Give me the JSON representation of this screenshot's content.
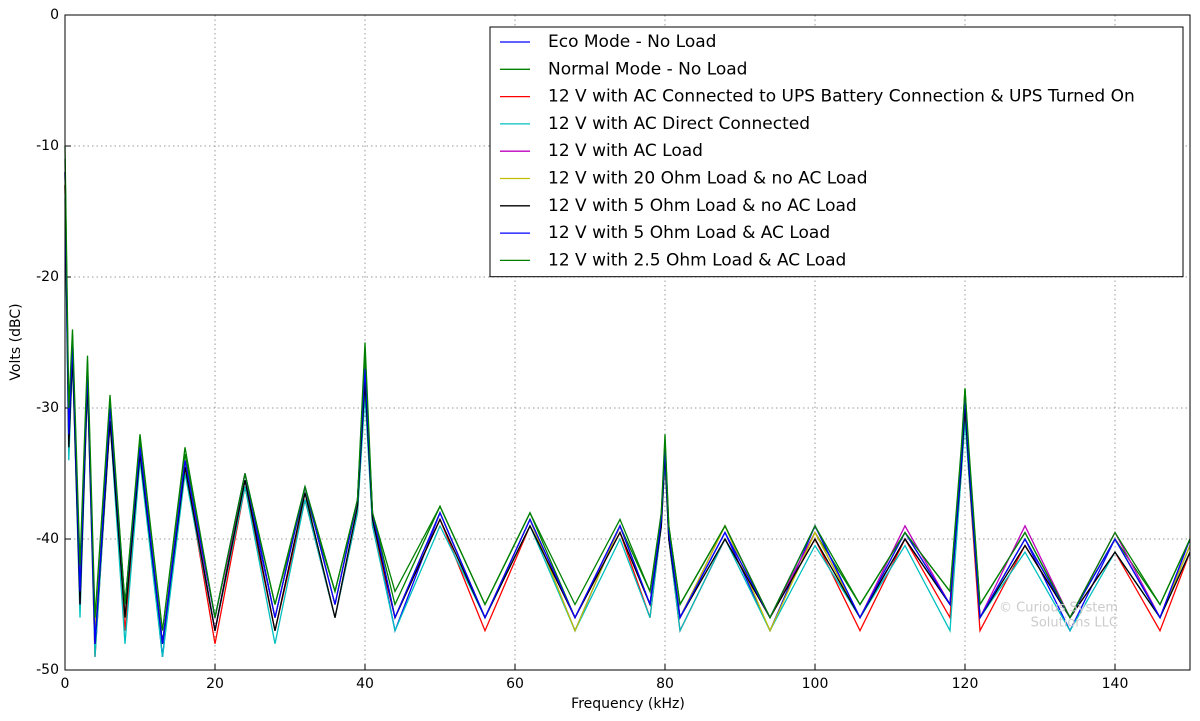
{
  "chart_data": {
    "type": "line",
    "x_label": "Frequency (kHz)",
    "y_label": "Volts (dBC)",
    "annotations": [
      "© Curious System",
      "Solutions LLC"
    ],
    "xlim": [
      0,
      150
    ],
    "xticks": [
      0,
      20,
      40,
      60,
      80,
      100,
      120,
      140
    ],
    "ylim": [
      -50,
      0
    ],
    "yticks": [
      -50,
      -40,
      -30,
      -20,
      -10,
      0
    ],
    "grid": true,
    "legend": "upper right",
    "x": [
      0,
      0.5,
      1,
      2,
      3,
      4,
      6,
      8,
      10,
      13,
      16,
      20,
      24,
      28,
      32,
      36,
      39,
      40,
      41,
      44,
      50,
      56,
      62,
      68,
      74,
      78,
      79.5,
      80,
      80.5,
      82,
      88,
      94,
      100,
      106,
      112,
      118,
      119.5,
      120,
      120.5,
      122,
      128,
      134,
      140,
      146,
      150
    ],
    "series": [
      {
        "name": "Eco Mode - No Load",
        "color": "#0000ff",
        "values": [
          -12,
          -32,
          -25,
          -44,
          -27,
          -48,
          -30,
          -46,
          -33,
          -49,
          -34,
          -47,
          -35.5,
          -46,
          -36,
          -45,
          -37,
          -27,
          -38.5,
          -47,
          -38,
          -46,
          -38.5,
          -47,
          -39,
          -45,
          -38,
          -33,
          -40,
          -46,
          -39.5,
          -47,
          -39,
          -46,
          -40,
          -45,
          -34,
          -29,
          -34,
          -46,
          -40,
          -47,
          -40,
          -46,
          -40.5
        ]
      },
      {
        "name": "Normal Mode - No Load",
        "color": "#008000",
        "values": [
          -11,
          -31,
          -24.5,
          -43,
          -26.5,
          -47,
          -29.5,
          -45,
          -32.5,
          -48,
          -33.5,
          -46,
          -35,
          -45,
          -36.5,
          -44,
          -37,
          -26,
          -38,
          -45,
          -37.5,
          -45,
          -38,
          -46,
          -39,
          -44,
          -38.5,
          -32.5,
          -39,
          -45,
          -39,
          -46,
          -39.5,
          -45,
          -39.5,
          -44,
          -33.5,
          -28.5,
          -33.5,
          -45,
          -39.5,
          -46,
          -40,
          -45,
          -40
        ]
      },
      {
        "name": "12 V with AC Connected to UPS Battery Connection & UPS Turned On",
        "color": "#ff0000",
        "values": [
          -13,
          -33,
          -26,
          -45,
          -28,
          -49,
          -31,
          -47,
          -33.5,
          -48,
          -34.5,
          -48,
          -36,
          -47,
          -37,
          -46,
          -38,
          -28,
          -39,
          -46,
          -38.5,
          -47,
          -39,
          -46,
          -39.5,
          -46,
          -39,
          -34,
          -40,
          -47,
          -40,
          -46,
          -40,
          -47,
          -40,
          -46,
          -35,
          -30,
          -35,
          -47,
          -40.5,
          -46,
          -41,
          -47,
          -41
        ]
      },
      {
        "name": "12 V with AC Direct Connected",
        "color": "#00bfbf",
        "values": [
          -14,
          -34,
          -26,
          -46,
          -28,
          -49,
          -31,
          -48,
          -34,
          -49,
          -35,
          -47,
          -36,
          -48,
          -37,
          -46,
          -38,
          -29,
          -39,
          -47,
          -39,
          -46,
          -39,
          -47,
          -40,
          -46,
          -39,
          -34,
          -40,
          -47,
          -40,
          -47,
          -40.5,
          -46,
          -40.5,
          -47,
          -35,
          -31,
          -35,
          -46,
          -41,
          -47,
          -41,
          -46,
          -41
        ]
      },
      {
        "name": "12 V with AC Load",
        "color": "#bf00bf",
        "values": [
          -12,
          -32,
          -25,
          -45,
          -27,
          -48,
          -30,
          -46,
          -33,
          -48,
          -34,
          -47,
          -35,
          -46,
          -36,
          -45,
          -37,
          -27,
          -38,
          -46,
          -38,
          -46,
          -38.5,
          -46,
          -39,
          -45,
          -38.5,
          -33,
          -39.5,
          -46,
          -39,
          -46,
          -39.5,
          -46,
          -39,
          -45,
          -34,
          -29,
          -34,
          -46,
          -39,
          -46,
          -39.5,
          -46,
          -40
        ]
      },
      {
        "name": "12 V with 20 Ohm Load & no AC Load",
        "color": "#bfbf00",
        "values": [
          -13,
          -32,
          -25,
          -44,
          -27,
          -47,
          -30,
          -46,
          -33,
          -48,
          -34,
          -46,
          -35,
          -46,
          -36,
          -45,
          -37,
          -27,
          -38,
          -46,
          -38,
          -46,
          -38.5,
          -47,
          -39,
          -45,
          -38.5,
          -33,
          -39.5,
          -46,
          -39,
          -47,
          -39.5,
          -46,
          -39.5,
          -45,
          -34,
          -29.5,
          -34,
          -46,
          -40,
          -46,
          -40,
          -46,
          -40.5
        ]
      },
      {
        "name": "12 V with 5 Ohm Load & no AC Load",
        "color": "#000000",
        "values": [
          -13,
          -33,
          -26,
          -45,
          -28,
          -48,
          -31,
          -46,
          -33.5,
          -48,
          -34.5,
          -47,
          -35.5,
          -47,
          -36.5,
          -46,
          -37.5,
          -28,
          -38.5,
          -46,
          -38.5,
          -46,
          -39,
          -46,
          -39.5,
          -45,
          -39,
          -33.5,
          -40,
          -46,
          -40,
          -46,
          -40,
          -46,
          -40,
          -45,
          -34.5,
          -30,
          -34.5,
          -46,
          -40.5,
          -46,
          -41,
          -46,
          -41
        ]
      },
      {
        "name": "12 V with 5 Ohm Load & AC Load",
        "color": "#0000ff",
        "values": [
          -12,
          -32,
          -25,
          -44,
          -27,
          -48,
          -30,
          -45,
          -33,
          -48,
          -34,
          -46,
          -35,
          -46,
          -36,
          -45,
          -37,
          -27,
          -38,
          -46,
          -38,
          -46,
          -38.5,
          -46,
          -39,
          -45,
          -38.5,
          -33,
          -39.5,
          -46,
          -39.5,
          -46,
          -39,
          -46,
          -39.5,
          -45,
          -34,
          -29,
          -34,
          -46,
          -40,
          -46,
          -40,
          -46,
          -40
        ]
      },
      {
        "name": "12 V with 2.5 Ohm Load & AC Load",
        "color": "#008000",
        "values": [
          -10,
          -30,
          -24,
          -42,
          -26,
          -46,
          -29,
          -45,
          -32,
          -47,
          -33,
          -46,
          -35,
          -45,
          -36,
          -44,
          -37,
          -25,
          -38,
          -44,
          -37.5,
          -45,
          -38,
          -45,
          -38.5,
          -44,
          -38,
          -32,
          -39,
          -45,
          -39,
          -46,
          -39,
          -45,
          -39.5,
          -44,
          -33,
          -28.5,
          -33,
          -45,
          -39.5,
          -46,
          -39.5,
          -45,
          -40
        ]
      }
    ]
  }
}
